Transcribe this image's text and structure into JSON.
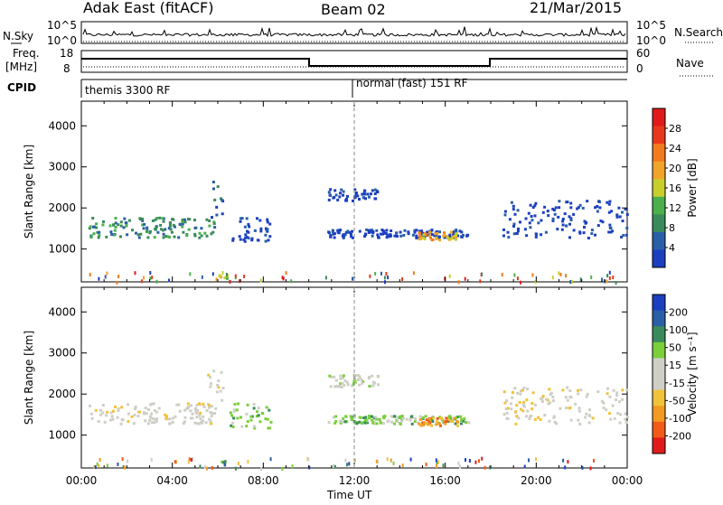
{
  "header": {
    "radar": "Adak East (fitACF)",
    "beam": "Beam 02",
    "date": "21/Mar/2015"
  },
  "panels": {
    "nsky_label": "N.Sky",
    "nsearch_label": "N.Search",
    "nsky_ticks": [
      "10^5",
      "10^0"
    ],
    "nsearch_ticks": [
      "10^5",
      "10^0"
    ],
    "freq_label_1": "Freq.",
    "freq_label_2": "[MHz]",
    "freq_ticks": [
      "18",
      "8"
    ],
    "nave_label": "Nave",
    "nave_ticks": [
      "60",
      "0"
    ],
    "cpid_label": "CPID",
    "cpid_segments": [
      {
        "text": "themis 3300 RF",
        "start_h": 0
      },
      {
        "text": "normal (fast) 151 RF",
        "start_h": 12
      }
    ]
  },
  "colors": {
    "power": [
      "#1c3fbf",
      "#2a5fa8",
      "#3a8a5c",
      "#4bb04b",
      "#c8cf2d",
      "#f1a42a",
      "#f27a1f",
      "#e8381c",
      "#e01a1a"
    ],
    "velocity": [
      "#e01a1a",
      "#f25a1a",
      "#f39a22",
      "#f2c23a",
      "#cfcfc6",
      "#cfcfc6",
      "#7bcf3a",
      "#3a8a5c",
      "#2a5fa8",
      "#1c3fbf"
    ]
  },
  "chart_data": [
    {
      "type": "heatmap",
      "name": "power",
      "ylabel": "Slant Range [km]",
      "xlabel": "",
      "xlim": [
        0,
        24
      ],
      "ylim": [
        200,
        4600
      ],
      "yticks": [
        "1000",
        "2000",
        "3000",
        "4000"
      ],
      "colorbar_label": "Power [dB]",
      "colorbar_ticks": [
        "4",
        "8",
        "12",
        "16",
        "20",
        "24",
        "28"
      ],
      "bands": [
        {
          "t0": 0.3,
          "t1": 5.8,
          "r0": 1300,
          "r1": 1800,
          "level": 2
        },
        {
          "t0": 5.5,
          "t1": 6.2,
          "r0": 1400,
          "r1": 2800,
          "level": 1
        },
        {
          "t0": 6.5,
          "t1": 8.3,
          "r0": 1200,
          "r1": 1800,
          "level": 0
        },
        {
          "t0": 10.8,
          "t1": 17.0,
          "r0": 1300,
          "r1": 1500,
          "level": 0
        },
        {
          "t0": 14.8,
          "t1": 16.5,
          "r0": 1250,
          "r1": 1450,
          "level": 5
        },
        {
          "t0": 10.8,
          "t1": 13.0,
          "r0": 2200,
          "r1": 2500,
          "level": 0
        },
        {
          "t0": 18.5,
          "t1": 24,
          "r0": 1300,
          "r1": 2200,
          "level": 0
        },
        {
          "t0": 6.0,
          "t1": 6.4,
          "r0": 300,
          "r1": 400,
          "level": 4
        }
      ]
    },
    {
      "type": "heatmap",
      "name": "velocity",
      "ylabel": "Slant Range [km]",
      "xlabel": "Time UT",
      "xlim": [
        0,
        24
      ],
      "ylim": [
        200,
        4600
      ],
      "yticks": [
        "1000",
        "2000",
        "3000",
        "4000"
      ],
      "xticks": [
        "00:00",
        "04:00",
        "08:00",
        "12:00",
        "16:00",
        "20:00",
        "00:00"
      ],
      "colorbar_label": "Velocity [m s⁻¹]",
      "colorbar_ticks": [
        "200",
        "100",
        "50",
        "15",
        "-15",
        "-50",
        "-100",
        "-200"
      ],
      "bands": [
        {
          "t0": 0.3,
          "t1": 5.8,
          "r0": 1300,
          "r1": 1800,
          "level": 4
        },
        {
          "t0": 5.5,
          "t1": 6.2,
          "r0": 1400,
          "r1": 2800,
          "level": 4
        },
        {
          "t0": 6.5,
          "t1": 8.3,
          "r0": 1200,
          "r1": 1800,
          "level": 6
        },
        {
          "t0": 10.8,
          "t1": 17.0,
          "r0": 1300,
          "r1": 1500,
          "level": 6
        },
        {
          "t0": 14.8,
          "t1": 16.5,
          "r0": 1250,
          "r1": 1450,
          "level": 2
        },
        {
          "t0": 10.8,
          "t1": 13.0,
          "r0": 2200,
          "r1": 2500,
          "level": 5
        },
        {
          "t0": 18.5,
          "t1": 24,
          "r0": 1300,
          "r1": 2200,
          "level": 4
        },
        {
          "t0": 6.0,
          "t1": 6.4,
          "r0": 300,
          "r1": 400,
          "level": 6
        }
      ]
    }
  ]
}
